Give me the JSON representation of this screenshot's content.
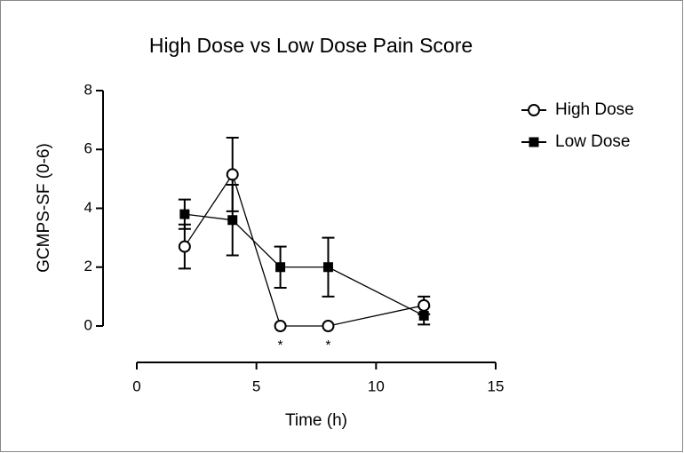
{
  "chart_data": {
    "type": "line",
    "title": "High Dose vs Low Dose Pain Score",
    "x_label": "Time (h)",
    "y_label": "GCMPS-SF (0-6)",
    "xlim": [
      0,
      15
    ],
    "xticks": [
      0,
      5,
      10,
      15
    ],
    "ylim": [
      0,
      8
    ],
    "yticks": [
      0,
      2,
      4,
      6,
      8
    ],
    "legend": "right",
    "series": [
      {
        "name": "High Dose",
        "color": "#000000",
        "marker": "circle-open",
        "x": [
          2,
          4,
          6,
          8,
          12
        ],
        "values": [
          2.7,
          5.15,
          0,
          0,
          0.7
        ],
        "errors": [
          0.75,
          1.25,
          0,
          0,
          0.3
        ]
      },
      {
        "name": "Low Dose",
        "color": "#000000",
        "marker": "square",
        "x": [
          2,
          4,
          6,
          8,
          12
        ],
        "values": [
          3.8,
          3.6,
          2.0,
          2.0,
          0.35
        ],
        "errors": [
          0.5,
          1.2,
          0.7,
          1.0,
          0.3
        ]
      }
    ],
    "annotations": [
      {
        "text": "*",
        "x": 6
      },
      {
        "text": "*",
        "x": 8
      }
    ]
  }
}
